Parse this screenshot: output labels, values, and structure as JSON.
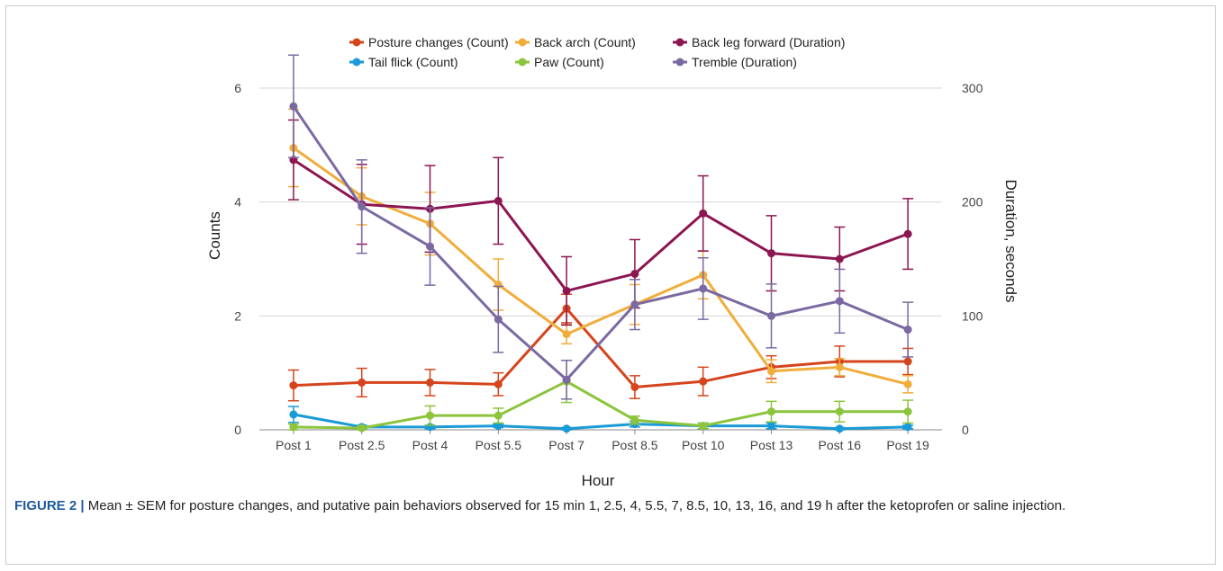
{
  "caption": {
    "label": "FIGURE 2 |",
    "text": " Mean ± SEM for posture changes, and putative pain behaviors observed for 15 min 1, 2.5, 4, 5.5, 7, 8.5, 10, 13, 16, and 19 h after the ketoprofen or saline injection."
  },
  "chart_data": {
    "type": "line",
    "xlabel": "Hour",
    "ylabel": "Counts",
    "y2label": "Duration, seconds",
    "categories": [
      "Post 1",
      "Post 2.5",
      "Post 4",
      "Post 5.5",
      "Post 7",
      "Post 8.5",
      "Post 10",
      "Post 13",
      "Post 16",
      "Post 19"
    ],
    "ylim": [
      0,
      6
    ],
    "yticks": [
      0,
      2,
      4,
      6
    ],
    "y2lim": [
      0,
      300
    ],
    "y2ticks": [
      0,
      100,
      200,
      300
    ],
    "grid": true,
    "legend_position": "top",
    "series": [
      {
        "name": "Posture changes (Count)",
        "axis": "left",
        "color": "#d5441c",
        "values": [
          0.78,
          0.83,
          0.83,
          0.8,
          2.13,
          0.75,
          0.85,
          1.1,
          1.2,
          1.2
        ],
        "err": [
          0.27,
          0.25,
          0.23,
          0.2,
          0.25,
          0.2,
          0.25,
          0.2,
          0.27,
          0.23
        ]
      },
      {
        "name": "Back arch (Count)",
        "axis": "left",
        "color": "#f0ad3c",
        "values": [
          4.95,
          4.1,
          3.62,
          2.55,
          1.68,
          2.2,
          2.72,
          1.03,
          1.1,
          0.8
        ],
        "err": [
          0.68,
          0.5,
          0.55,
          0.45,
          0.17,
          0.35,
          0.42,
          0.2,
          0.15,
          0.15
        ]
      },
      {
        "name": "Back leg forward (Duration)",
        "axis": "right",
        "color": "#8c1652",
        "values": [
          237,
          198,
          194,
          201,
          122,
          137,
          190,
          155,
          150,
          172
        ],
        "err": [
          35,
          35,
          38,
          38,
          30,
          30,
          33,
          33,
          28,
          31
        ]
      },
      {
        "name": "Tail flick (Count)",
        "axis": "left",
        "color": "#1a9ad6",
        "values": [
          0.27,
          0.05,
          0.05,
          0.07,
          0.02,
          0.1,
          0.07,
          0.07,
          0.02,
          0.05
        ],
        "err": [
          0.14,
          0.03,
          0.03,
          0.03,
          0.02,
          0.05,
          0.05,
          0.05,
          0.02,
          0.03
        ]
      },
      {
        "name": "Paw (Count)",
        "axis": "left",
        "color": "#8cc43c",
        "values": [
          0.05,
          0.03,
          0.25,
          0.25,
          0.85,
          0.17,
          0.07,
          0.32,
          0.32,
          0.32
        ],
        "err": [
          0.05,
          0.03,
          0.17,
          0.13,
          0.37,
          0.07,
          0.05,
          0.18,
          0.18,
          0.2
        ]
      },
      {
        "name": "Tremble (Duration)",
        "axis": "right",
        "color": "#7b6aa2",
        "values": [
          284,
          196,
          161,
          97,
          44,
          110,
          124,
          100,
          113,
          88
        ],
        "err": [
          45,
          41,
          34,
          29,
          17,
          22,
          27,
          28,
          28,
          24
        ]
      }
    ]
  }
}
